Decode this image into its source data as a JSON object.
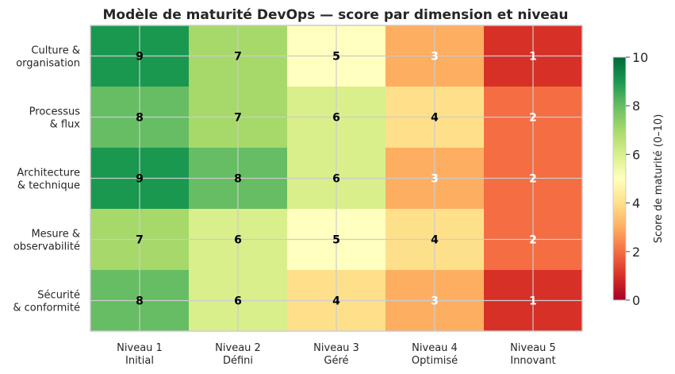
{
  "chart_data": {
    "type": "heatmap",
    "title": "Modèle de maturité DevOps — score par dimension et niveau",
    "rows": [
      [
        "Culture &",
        "organisation"
      ],
      [
        "Processus",
        "& flux"
      ],
      [
        "Architecture",
        "& technique"
      ],
      [
        "Mesure &",
        "observabilité"
      ],
      [
        "Sécurité",
        "& conformité"
      ]
    ],
    "columns": [
      [
        "Niveau 1",
        "Initial"
      ],
      [
        "Niveau 2",
        "Défini"
      ],
      [
        "Niveau 3",
        "Géré"
      ],
      [
        "Niveau 4",
        "Optimisé"
      ],
      [
        "Niveau 5",
        "Innovant"
      ]
    ],
    "values": [
      [
        9,
        7,
        5,
        3,
        1
      ],
      [
        8,
        7,
        6,
        4,
        2
      ],
      [
        9,
        8,
        6,
        3,
        2
      ],
      [
        7,
        6,
        5,
        4,
        2
      ],
      [
        8,
        6,
        4,
        3,
        1
      ]
    ],
    "colorbar": {
      "label": "Score de maturité (0–10)",
      "range": [
        0,
        10
      ],
      "ticks": [
        0,
        2,
        4,
        6,
        8,
        10
      ],
      "colormap": "RdYlGn"
    },
    "grid": true
  },
  "colors": {
    "score_1": "#d73027",
    "score_2": "#f46d43",
    "score_3": "#fdae61",
    "score_4": "#fee08b",
    "score_5": "#ffffbf",
    "score_6": "#d9ef8b",
    "score_7": "#a6d96a",
    "score_8": "#66bd63",
    "score_9": "#1a9850"
  }
}
